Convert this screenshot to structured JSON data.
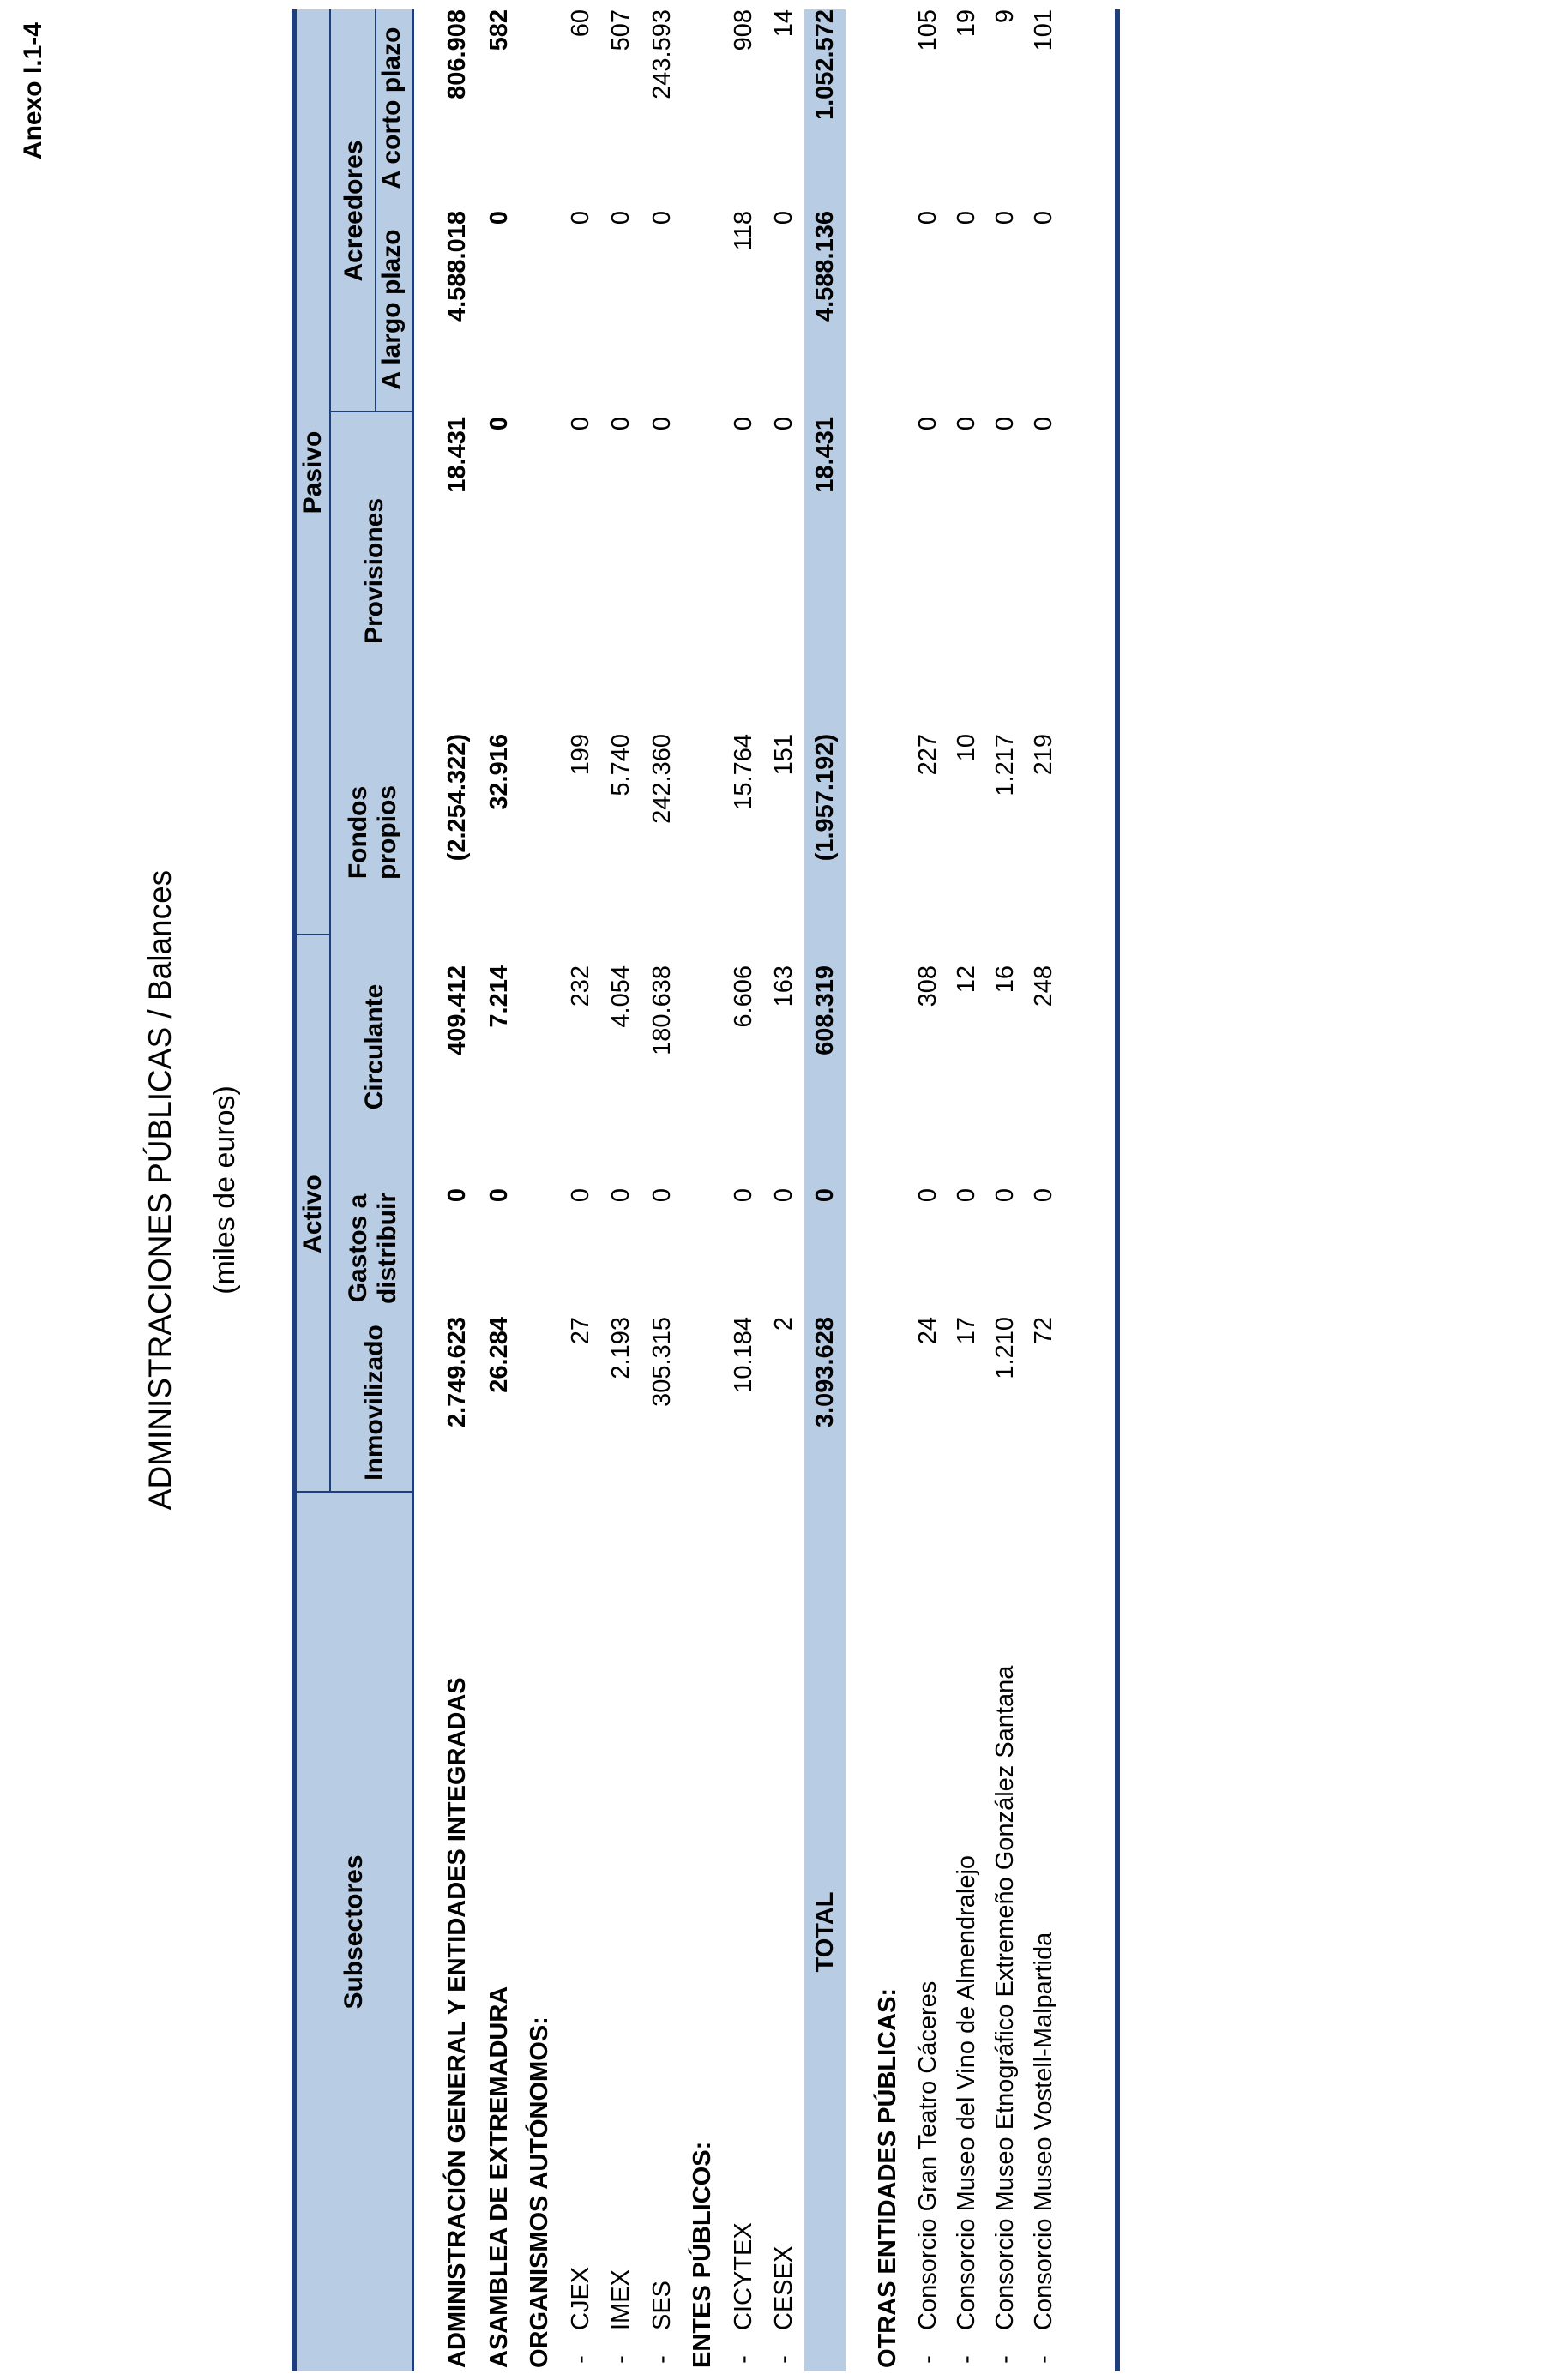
{
  "annex": "Anexo I.1-4",
  "title": "ADMINISTRACIONES PÚBLICAS  /  Balances",
  "subtitle": "(miles de euros)",
  "header": {
    "subsectores": "Subsectores",
    "activo": "Activo",
    "pasivo": "Pasivo",
    "acreedores": "Acreedores",
    "columns": {
      "inmovilizado": "Inmovilizado",
      "gastos_line1": "Gastos a",
      "gastos_line2": "distribuir",
      "circulante": "Circulante",
      "fondos_line1": "Fondos",
      "fondos_line2": "propios",
      "provisiones": "Provisiones",
      "largo": "A largo plazo",
      "corto": "A corto plazo"
    }
  },
  "rows": [
    {
      "label": "ADMINISTRACIÓN GENERAL Y ENTIDADES INTEGRADAS",
      "values": [
        "2.749.623",
        "0",
        "409.412",
        "(2.254.322)",
        "18.431",
        "4.588.018",
        "806.908"
      ]
    },
    {
      "label": "ASAMBLEA DE EXTREMADURA",
      "values": [
        "26.284",
        "0",
        "7.214",
        "32.916",
        "0",
        "0",
        "582"
      ]
    },
    {
      "label": "ORGANISMOS AUTÓNOMOS:"
    },
    {
      "dash": "-",
      "label": "CJEX",
      "values": [
        "27",
        "0",
        "232",
        "199",
        "0",
        "0",
        "60"
      ]
    },
    {
      "dash": "-",
      "label": "IMEX",
      "values": [
        "2.193",
        "0",
        "4.054",
        "5.740",
        "0",
        "0",
        "507"
      ]
    },
    {
      "dash": "-",
      "label": "SES",
      "values": [
        "305.315",
        "0",
        "180.638",
        "242.360",
        "0",
        "0",
        "243.593"
      ]
    },
    {
      "label": "ENTES PÚBLICOS:"
    },
    {
      "dash": "-",
      "label": "CICYTEX",
      "values": [
        "10.184",
        "0",
        "6.606",
        "15.764",
        "0",
        "118",
        "908"
      ]
    },
    {
      "dash": "-",
      "label": "CESEX",
      "values": [
        "2",
        "0",
        "163",
        "151",
        "0",
        "0",
        "14"
      ]
    }
  ],
  "total": {
    "label": "TOTAL",
    "values": [
      "3.093.628",
      "0",
      "608.319",
      "(1.957.192)",
      "18.431",
      "4.588.136",
      "1.052.572"
    ]
  },
  "otras": {
    "label": "OTRAS ENTIDADES PÚBLICAS:",
    "rows": [
      {
        "dash": "-",
        "label": "Consorcio Gran Teatro Cáceres",
        "values": [
          "24",
          "0",
          "308",
          "227",
          "0",
          "0",
          "105"
        ]
      },
      {
        "dash": "-",
        "label": "Consorcio Museo del Vino de Almendralejo",
        "values": [
          "17",
          "0",
          "12",
          "10",
          "0",
          "0",
          "19"
        ]
      },
      {
        "dash": "-",
        "label": "Consorcio Museo Etnográfico Extremeño González Santana",
        "values": [
          "1.210",
          "0",
          "16",
          "1.217",
          "0",
          "0",
          "9"
        ]
      },
      {
        "dash": "-",
        "label": "Consorcio Museo Vostell-Malpartida",
        "values": [
          "72",
          "0",
          "248",
          "219",
          "0",
          "0",
          "101"
        ]
      }
    ]
  },
  "colors": {
    "header_band": "#b8cce4",
    "rule": "#1f3e7c"
  }
}
